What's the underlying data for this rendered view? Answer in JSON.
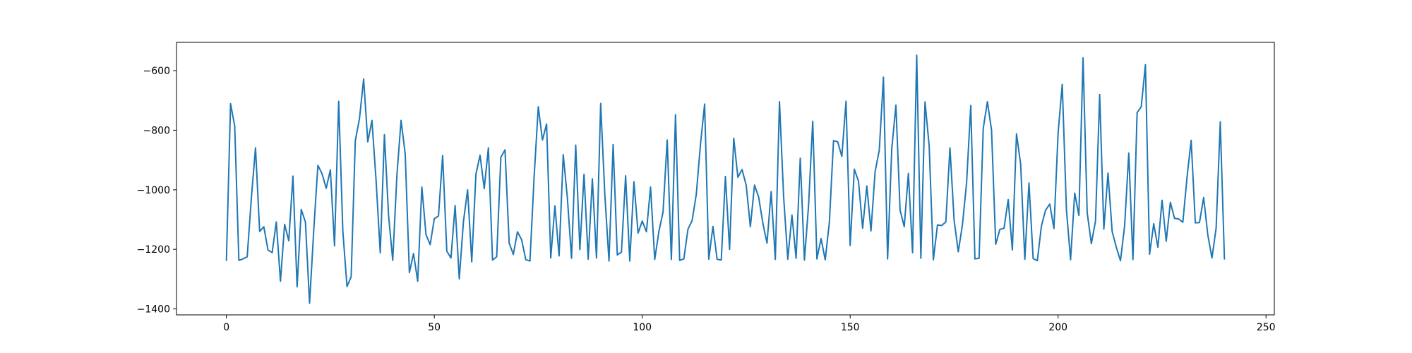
{
  "chart_data": {
    "type": "line",
    "title": "",
    "xlabel": "",
    "ylabel": "",
    "xlim": [
      -12,
      252
    ],
    "ylim": [
      -1420,
      -505
    ],
    "x_ticks": [
      0,
      50,
      100,
      150,
      200,
      250
    ],
    "y_ticks": [
      -1400,
      -1200,
      -1000,
      -800,
      -600
    ],
    "x_tick_labels": [
      "0",
      "50",
      "100",
      "150",
      "200",
      "250"
    ],
    "y_tick_labels": [
      "−1400",
      "−1200",
      "−1000",
      "−800",
      "−600"
    ],
    "grid": false,
    "legend": "none",
    "series": [
      {
        "color": "#1f77b4",
        "x_start": 0,
        "x_step": 1,
        "values": [
          -1237,
          -711,
          -786,
          -1237,
          -1232,
          -1225,
          -1028,
          -859,
          -1140,
          -1124,
          -1202,
          -1211,
          -1108,
          -1307,
          -1116,
          -1171,
          -954,
          -1326,
          -1066,
          -1108,
          -1381,
          -1137,
          -918,
          -946,
          -995,
          -933,
          -1188,
          -703,
          -1139,
          -1325,
          -1292,
          -835,
          -761,
          -628,
          -839,
          -767,
          -970,
          -1212,
          -815,
          -1087,
          -1237,
          -951,
          -767,
          -880,
          -1278,
          -1214,
          -1307,
          -991,
          -1151,
          -1184,
          -1097,
          -1088,
          -885,
          -1206,
          -1229,
          -1053,
          -1299,
          -1107,
          -1000,
          -1242,
          -948,
          -884,
          -996,
          -859,
          -1236,
          -1225,
          -891,
          -866,
          -1179,
          -1217,
          -1141,
          -1168,
          -1235,
          -1239,
          -957,
          -721,
          -833,
          -779,
          -1229,
          -1054,
          -1222,
          -882,
          -1028,
          -1230,
          -850,
          -1201,
          -948,
          -1233,
          -963,
          -1229,
          -710,
          -1016,
          -1239,
          -848,
          -1219,
          -1209,
          -953,
          -1239,
          -973,
          -1145,
          -1105,
          -1141,
          -991,
          -1234,
          -1140,
          -1075,
          -833,
          -1234,
          -748,
          -1237,
          -1232,
          -1132,
          -1103,
          -1015,
          -848,
          -712,
          -1233,
          -1123,
          -1233,
          -1236,
          -955,
          -1200,
          -827,
          -958,
          -932,
          -985,
          -1124,
          -984,
          -1025,
          -1112,
          -1179,
          -1006,
          -1234,
          -704,
          -1023,
          -1233,
          -1085,
          -1230,
          -894,
          -1236,
          -1052,
          -770,
          -1232,
          -1164,
          -1235,
          -1109,
          -835,
          -839,
          -888,
          -703,
          -1187,
          -931,
          -971,
          -1129,
          -987,
          -1138,
          -939,
          -867,
          -622,
          -1232,
          -863,
          -716,
          -1068,
          -1124,
          -945,
          -1211,
          -548,
          -1230,
          -705,
          -853,
          -1235,
          -1118,
          -1120,
          -1108,
          -859,
          -1103,
          -1208,
          -1117,
          -976,
          -717,
          -1232,
          -1230,
          -794,
          -704,
          -800,
          -1183,
          -1133,
          -1129,
          -1033,
          -1202,
          -812,
          -914,
          -1233,
          -977,
          -1231,
          -1238,
          -1121,
          -1068,
          -1048,
          -1130,
          -810,
          -646,
          -1065,
          -1235,
          -1011,
          -1086,
          -557,
          -1077,
          -1181,
          -1105,
          -680,
          -1132,
          -944,
          -1140,
          -1193,
          -1238,
          -1121,
          -877,
          -1234,
          -741,
          -721,
          -580,
          -1216,
          -1114,
          -1193,
          -1035,
          -1173,
          -1042,
          -1096,
          -1098,
          -1109,
          -959,
          -834,
          -1111,
          -1110,
          -1026,
          -1151,
          -1229,
          -1129,
          -772,
          -1232
        ]
      }
    ]
  }
}
